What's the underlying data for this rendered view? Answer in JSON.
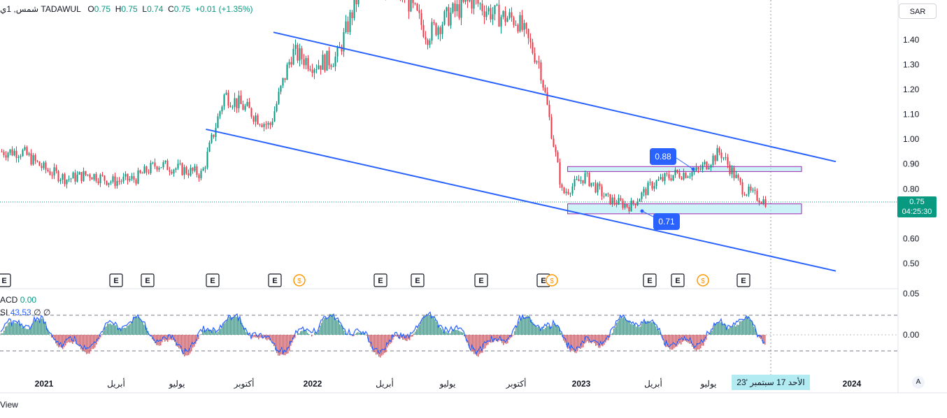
{
  "header": {
    "symbol_name": "شمس, 1ي",
    "exchange": "TADAWUL",
    "o_label": "O",
    "o_value": "0.75",
    "h_label": "H",
    "h_value": "0.75",
    "l_label": "L",
    "l_value": "0.74",
    "c_label": "C",
    "c_value": "0.75",
    "change": "+0.01 (+1.35%)"
  },
  "currency_button": "SAR",
  "last_price_tag": {
    "price": "0.75",
    "countdown": "04:25:30"
  },
  "crosshair_date": "الأحد 17 سبتمبر '23",
  "auto_button": "A",
  "brand_fragment": "View",
  "macd_legend": {
    "label": "ACD",
    "value": "0.00"
  },
  "rsi_legend": {
    "label": "SI",
    "value": "43.53",
    "extra": "∅ ∅"
  },
  "callouts": [
    {
      "text": "0.88",
      "price": 0.88
    },
    {
      "text": "0.71",
      "price": 0.71
    }
  ],
  "event_markers": [
    "E",
    "E",
    "E",
    "E",
    "E",
    "$",
    "E",
    "E",
    "E",
    "E",
    "$",
    "E",
    "E",
    "$",
    "E"
  ],
  "colors": {
    "up": "#089981",
    "down": "#f23645",
    "line": "#2962ff",
    "zone_fill": "#b2ebf2",
    "zone_border": "#9c27b0"
  },
  "chart_data": {
    "type": "line",
    "title": "",
    "price_axis": {
      "ticks": [
        "1.40",
        "1.30",
        "1.20",
        "1.10",
        "1.00",
        "0.90",
        "0.80",
        "0.70",
        "0.60",
        "0.50"
      ],
      "ylim": [
        0.45,
        1.52
      ]
    },
    "time_axis": {
      "ticks": [
        "2021",
        "أبريل",
        "يوليو",
        "أكتوبر",
        "2022",
        "أبريل",
        "يوليو",
        "أكتوبر",
        "2023",
        "أبريل",
        "يوليو",
        "2024"
      ]
    },
    "macd_axis": {
      "ticks": [
        "0.05",
        "0.00"
      ]
    },
    "price_series_monthly": {
      "x": [
        "2020-12",
        "2021-01",
        "2021-02",
        "2021-03",
        "2021-04",
        "2021-05",
        "2021-06",
        "2021-07",
        "2021-08",
        "2021-09",
        "2021-10",
        "2021-11",
        "2021-12",
        "2022-01",
        "2022-02",
        "2022-03",
        "2022-04",
        "2022-05",
        "2022-06",
        "2022-07",
        "2022-08",
        "2022-09",
        "2022-10",
        "2022-11",
        "2022-12",
        "2023-01",
        "2023-02",
        "2023-03",
        "2023-04",
        "2023-05",
        "2023-06",
        "2023-07",
        "2023-08",
        "2023-09"
      ],
      "y": [
        0.95,
        0.88,
        0.84,
        0.86,
        0.83,
        0.84,
        0.9,
        0.88,
        0.86,
        1.18,
        1.12,
        1.05,
        1.35,
        1.3,
        1.33,
        1.6,
        1.62,
        1.58,
        1.42,
        1.5,
        1.56,
        1.5,
        1.48,
        1.3,
        0.78,
        0.85,
        0.76,
        0.73,
        0.82,
        0.86,
        0.87,
        0.95,
        0.8,
        0.75
      ]
    },
    "drawings": {
      "channel_upper": {
        "from": [
          "2021-11",
          1.43
        ],
        "to": [
          "2023-12",
          0.91
        ]
      },
      "channel_lower": {
        "from": [
          "2021-08",
          1.04
        ],
        "to": [
          "2023-12",
          0.47
        ]
      },
      "resistance_zone": {
        "from": "2022-12",
        "to": "2023-10",
        "low": 0.87,
        "high": 0.89
      },
      "support_zone": {
        "from": "2022-12",
        "to": "2023-10",
        "low": 0.7,
        "high": 0.74
      }
    },
    "grid": false
  }
}
